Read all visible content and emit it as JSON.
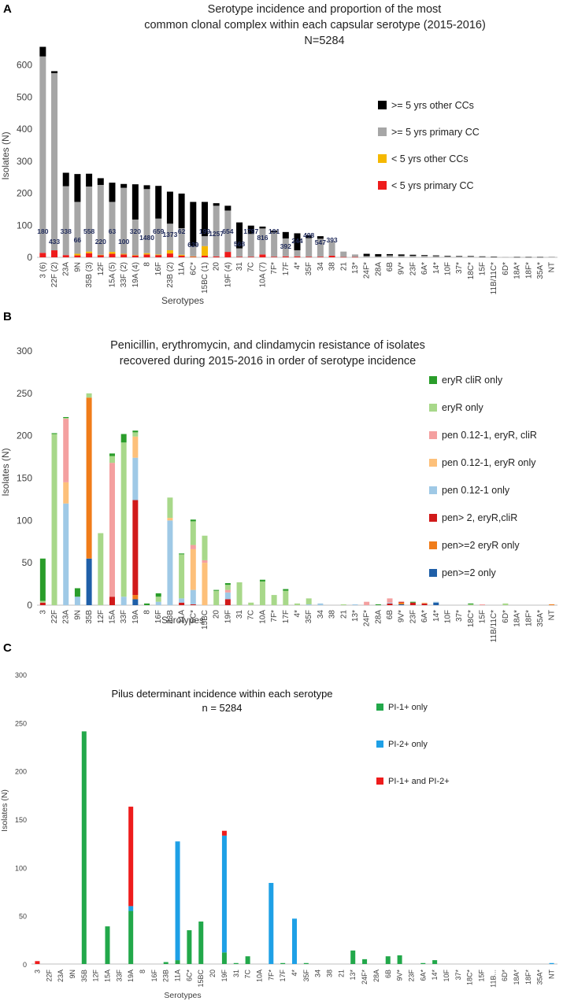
{
  "chart_data": [
    {
      "type": "bar",
      "stacked": true,
      "panel": "A",
      "title_lines": [
        "Serotype incidence and proportion of the most",
        "common clonal complex within each capsular serotype (2015-2016)",
        "N=5284"
      ],
      "xlabel": "Serotypes",
      "ylabel": "Isolates (N)",
      "ylim": [
        0,
        700
      ],
      "yticks": [
        0,
        100,
        200,
        300,
        400,
        500,
        600
      ],
      "categories": [
        "3 (6)",
        "22F (2)",
        "23A",
        "9N",
        "35B (3)",
        "12F",
        "15A (5)",
        "33F (2)",
        "19A (4)",
        "8",
        "16F",
        "23B (2)",
        "11A",
        "6C*",
        "15BC (1)",
        "20",
        "19F (4)",
        "31",
        "7C",
        "10A (7)",
        "7F*",
        "17F",
        "4*",
        "35F",
        "34",
        "38",
        "21",
        "13*",
        "24F*",
        "28A",
        "6B",
        "9V*",
        "23F",
        "6A*",
        "14*",
        "10F",
        "37*",
        "18C*",
        "15F",
        "11B/11C*",
        "6D*",
        "18A*",
        "18F*",
        "35A*",
        "NT"
      ],
      "series": [
        {
          "name": "< 5 yrs primary CC",
          "color": "#ee1c1c",
          "values": [
            14,
            22,
            7,
            6,
            13,
            7,
            11,
            9,
            6,
            9,
            7,
            12,
            5,
            2,
            5,
            3,
            17,
            2,
            2,
            9,
            2,
            3,
            3,
            2,
            2,
            5,
            1,
            1,
            0,
            0,
            0,
            0,
            0,
            0,
            0,
            0,
            0,
            0,
            0,
            0,
            0,
            0,
            0,
            0,
            0
          ]
        },
        {
          "name": "< 5 yrs other CCs",
          "color": "#f5b800",
          "values": [
            0,
            0,
            0,
            5,
            5,
            1,
            6,
            2,
            1,
            4,
            2,
            10,
            3,
            1,
            30,
            0,
            0,
            0,
            0,
            0,
            0,
            0,
            0,
            0,
            0,
            0,
            0,
            0,
            0,
            0,
            0,
            0,
            0,
            0,
            0,
            0,
            0,
            0,
            0,
            0,
            0,
            0,
            0,
            0,
            0
          ]
        },
        {
          "name": ">= 5 yrs primary CC",
          "color": "#a6a6a6",
          "values": [
            613,
            553,
            215,
            162,
            203,
            218,
            156,
            206,
            111,
            200,
            112,
            83,
            83,
            32,
            31,
            158,
            129,
            26,
            71,
            81,
            76,
            56,
            19,
            58,
            56,
            46,
            17,
            8,
            4,
            3,
            6,
            5,
            5,
            5,
            4,
            4,
            3,
            3,
            2,
            1,
            1,
            0,
            0,
            0,
            2
          ]
        },
        {
          "name": ">= 5 yrs other CCs",
          "color": "#000000",
          "values": [
            30,
            6,
            42,
            87,
            40,
            21,
            60,
            12,
            110,
            12,
            102,
            100,
            108,
            138,
            107,
            8,
            15,
            81,
            26,
            6,
            5,
            20,
            53,
            9,
            8,
            0,
            0,
            0,
            7,
            7,
            4,
            4,
            3,
            2,
            2,
            1,
            1,
            1,
            1,
            1,
            0,
            1,
            1,
            1,
            0
          ]
        }
      ],
      "bar_labels": [
        "180",
        "433",
        "338",
        "66",
        "558",
        "220",
        "63",
        "100",
        "320",
        "1480",
        "659",
        "1373",
        "62",
        "639",
        "199",
        "1257",
        "654",
        "568",
        "1797",
        "816",
        "191",
        "392",
        "244",
        "498",
        "547",
        "393"
      ],
      "legend": [
        ">= 5 yrs other CCs",
        ">= 5 yrs primary CC",
        "< 5 yrs other CCs",
        "< 5 yrs primary CC"
      ]
    },
    {
      "type": "bar",
      "stacked": true,
      "panel": "B",
      "title_lines": [
        "Penicillin, erythromycin, and clindamycin resistance of isolates",
        "recovered during 2015-2016 in order of serotype incidence"
      ],
      "xlabel": "Serotypes",
      "ylabel": "Isolates (N)",
      "ylim": [
        0,
        300
      ],
      "yticks": [
        0,
        50,
        100,
        150,
        200,
        250,
        300
      ],
      "categories": [
        "3",
        "22F",
        "23A",
        "9N",
        "35B",
        "12F",
        "15A",
        "33F",
        "19A",
        "8",
        "16F",
        "23B",
        "11A",
        "6C*",
        "15BC",
        "20",
        "19F",
        "31",
        "7C",
        "10A",
        "7F*",
        "17F",
        "4*",
        "35F",
        "34",
        "38",
        "21",
        "13*",
        "24F*",
        "28A",
        "6B",
        "9V*",
        "23F",
        "6A*",
        "14*",
        "10F",
        "37*",
        "18C*",
        "15F",
        "11B/11C*",
        "6D*",
        "18A*",
        "18F*",
        "35A*",
        "NT"
      ],
      "series": [
        {
          "name": "pen>=2 only",
          "color": "#1f5fa8",
          "values": [
            0,
            0,
            0,
            0,
            55,
            0,
            0,
            0,
            7,
            0,
            0,
            0,
            0,
            0,
            0,
            0,
            0,
            0,
            0,
            0,
            0,
            0,
            0,
            0,
            0,
            0,
            0,
            0,
            0,
            0,
            0,
            1,
            0,
            0,
            3,
            0,
            0,
            0,
            0,
            0,
            0,
            0,
            0,
            0,
            0
          ]
        },
        {
          "name": "pen>=2 eryR only",
          "color": "#f07c1a",
          "values": [
            0,
            0,
            0,
            0,
            190,
            0,
            0,
            0,
            5,
            0,
            0,
            0,
            0,
            0,
            0,
            0,
            0,
            0,
            0,
            0,
            0,
            0,
            0,
            0,
            0,
            0,
            0,
            0,
            0,
            0,
            0,
            2,
            0,
            0,
            0,
            0,
            0,
            0,
            0,
            0,
            0,
            0,
            0,
            0,
            1
          ]
        },
        {
          "name": "pen> 2, eryR,cliR",
          "color": "#d11a1a",
          "values": [
            3,
            0,
            0,
            0,
            0,
            0,
            10,
            0,
            112,
            0,
            0,
            0,
            3,
            1,
            0,
            0,
            7,
            0,
            0,
            0,
            0,
            0,
            0,
            0,
            0,
            0,
            0,
            0,
            0,
            0,
            2,
            1,
            3,
            2,
            0,
            0,
            0,
            0,
            0,
            0,
            0,
            0,
            0,
            0,
            0
          ]
        },
        {
          "name": "pen 0.12-1 only",
          "color": "#9fc9e6",
          "values": [
            0,
            0,
            120,
            10,
            0,
            0,
            0,
            10,
            50,
            0,
            4,
            100,
            5,
            17,
            0,
            0,
            8,
            0,
            0,
            0,
            0,
            0,
            0,
            1,
            2,
            0,
            0,
            1,
            0,
            0,
            1,
            0,
            0,
            0,
            1,
            0,
            0,
            0,
            0,
            0,
            0,
            0,
            0,
            0,
            0
          ]
        },
        {
          "name": "pen 0.12-1, eryR only",
          "color": "#fdc07a",
          "values": [
            0,
            0,
            25,
            0,
            0,
            0,
            0,
            0,
            25,
            0,
            0,
            3,
            0,
            48,
            50,
            0,
            0,
            0,
            0,
            0,
            0,
            0,
            0,
            0,
            0,
            0,
            0,
            0,
            0,
            0,
            0,
            0,
            0,
            1,
            0,
            0,
            0,
            0,
            0,
            0,
            0,
            0,
            0,
            0,
            0
          ]
        },
        {
          "name": "pen 0.12-1, eryR, cliR",
          "color": "#f4a0a0",
          "values": [
            0,
            0,
            75,
            0,
            0,
            0,
            158,
            0,
            0,
            0,
            0,
            0,
            0,
            5,
            3,
            0,
            3,
            0,
            0,
            0,
            0,
            0,
            0,
            0,
            0,
            0,
            0,
            0,
            4,
            0,
            5,
            0,
            0,
            0,
            0,
            0,
            0,
            0,
            1,
            0,
            0,
            0,
            0,
            0,
            0
          ]
        },
        {
          "name": "eryR only",
          "color": "#a8d88a",
          "values": [
            2,
            202,
            1,
            0,
            5,
            85,
            8,
            182,
            5,
            0,
            6,
            24,
            52,
            28,
            29,
            17,
            6,
            27,
            3,
            28,
            12,
            17,
            2,
            7,
            0,
            0,
            1,
            0,
            0,
            0,
            0,
            0,
            0,
            0,
            0,
            0,
            0,
            1,
            0,
            0,
            2,
            0,
            0,
            0,
            0
          ]
        },
        {
          "name": "eryR cliR only",
          "color": "#2a9d2a",
          "values": [
            50,
            1,
            1,
            10,
            0,
            0,
            3,
            10,
            2,
            2,
            4,
            0,
            1,
            2,
            0,
            1,
            2,
            0,
            0,
            2,
            0,
            2,
            0,
            0,
            0,
            0,
            0,
            0,
            0,
            1,
            0,
            0,
            1,
            0,
            0,
            0,
            0,
            1,
            0,
            0,
            0,
            0,
            0,
            0,
            0
          ]
        }
      ],
      "legend": [
        "eryR cliR only",
        "eryR only",
        "pen 0.12-1, eryR, cliR",
        "pen 0.12-1, eryR only",
        "pen 0.12-1 only",
        "pen> 2, eryR,cliR",
        "pen>=2 eryR only",
        "pen>=2 only"
      ]
    },
    {
      "type": "bar",
      "stacked": true,
      "panel": "C",
      "title_lines": [
        "Pilus determinant incidence within each serotype",
        "n = 5284"
      ],
      "xlabel": "Serotypes",
      "ylabel": "Isolates (N)",
      "ylim": [
        0,
        300
      ],
      "yticks": [
        0,
        50,
        100,
        150,
        200,
        250,
        300
      ],
      "categories": [
        "3",
        "22F",
        "23A",
        "9N",
        "35B",
        "12F",
        "15A",
        "33F",
        "19A",
        "8",
        "16F",
        "23B",
        "11A",
        "6C*",
        "15BC",
        "20",
        "19F",
        "31",
        "7C",
        "10A",
        "7F*",
        "17F",
        "4*",
        "35F",
        "34",
        "38",
        "21",
        "13*",
        "24F*",
        "28A",
        "6B",
        "9V*",
        "23F",
        "6A*",
        "14*",
        "10F",
        "37*",
        "18C*",
        "15F",
        "11B...",
        "6D*",
        "18A*",
        "18F*",
        "35A*",
        "NT"
      ],
      "series": [
        {
          "name": "PI-1+ only",
          "color": "#22a84a",
          "values": [
            0,
            0,
            0,
            0,
            241,
            0,
            39,
            0,
            55,
            0,
            0,
            2,
            4,
            35,
            44,
            0,
            12,
            1,
            8,
            0,
            0,
            1,
            0,
            1,
            0,
            0,
            0,
            14,
            5,
            0,
            8,
            9,
            0,
            1,
            4,
            0,
            0,
            0,
            0,
            0,
            0,
            0,
            0,
            0,
            0
          ]
        },
        {
          "name": "PI-2+ only",
          "color": "#1ea0e6",
          "values": [
            0,
            0,
            0,
            0,
            0,
            0,
            0,
            0,
            5,
            0,
            0,
            0,
            123,
            0,
            0,
            0,
            121,
            0,
            0,
            0,
            84,
            0,
            47,
            0,
            0,
            0,
            0,
            0,
            0,
            0,
            0,
            0,
            0,
            0,
            0,
            0,
            0,
            0,
            0,
            0,
            0,
            0,
            0,
            0,
            1
          ]
        },
        {
          "name": "PI-1+ and PI-2+",
          "color": "#ee1c1c",
          "values": [
            3,
            0,
            0,
            0,
            0,
            0,
            0,
            0,
            103,
            0,
            0,
            0,
            0,
            0,
            0,
            0,
            5,
            0,
            0,
            0,
            0,
            0,
            0,
            0,
            0,
            0,
            0,
            0,
            0,
            0,
            0,
            0,
            0,
            0,
            0,
            0,
            0,
            0,
            0,
            0,
            0,
            0,
            0,
            0,
            0
          ]
        }
      ],
      "legend": [
        "PI-1+ only",
        "PI-2+ only",
        "PI-1+ and PI-2+"
      ]
    }
  ]
}
